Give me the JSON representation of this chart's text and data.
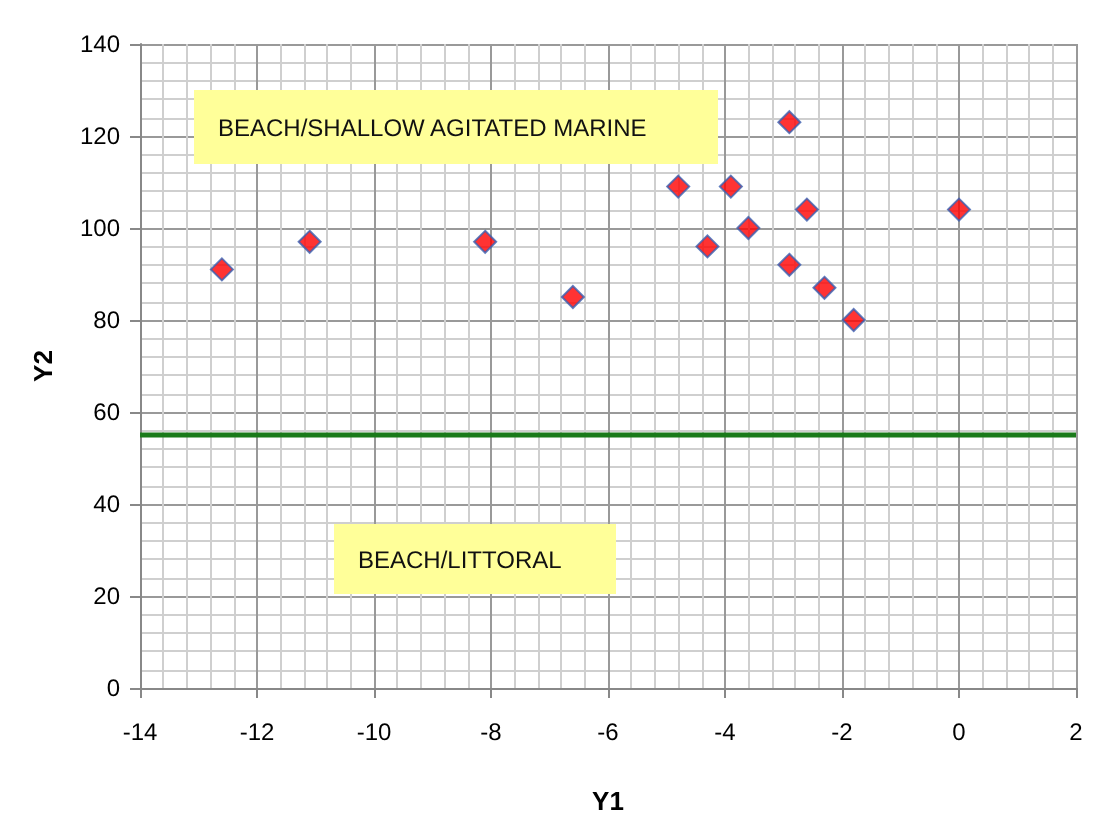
{
  "chart_data": {
    "type": "scatter",
    "xlabel": "Y1",
    "ylabel": "Y2",
    "x": [
      -12.6,
      -11.1,
      -8.1,
      -6.6,
      -4.8,
      -4.3,
      -3.9,
      -3.6,
      -2.9,
      -2.9,
      -2.6,
      -2.3,
      -1.8,
      0
    ],
    "series": [
      {
        "color": "#ff0000",
        "values": [
          91,
          97,
          97,
          85,
          109,
          96,
          109,
          100,
          92,
          123,
          104,
          87,
          80,
          104
        ]
      }
    ],
    "xlim": [
      -14,
      2
    ],
    "xticks": [
      -14,
      -12,
      -10,
      -8,
      -6,
      -4,
      -2,
      0,
      2
    ],
    "ylim": [
      0,
      140
    ],
    "yticks": [
      0,
      20,
      40,
      60,
      80,
      100,
      120,
      140
    ],
    "ref_lines": [
      {
        "axis": "y",
        "value": 55,
        "color": "#1a7a1a"
      }
    ],
    "annotations": [
      "BEACH/SHALLOW AGITATED MARINE",
      "BEACH/LITTORAL"
    ],
    "grid": true,
    "marker": "diamond"
  }
}
